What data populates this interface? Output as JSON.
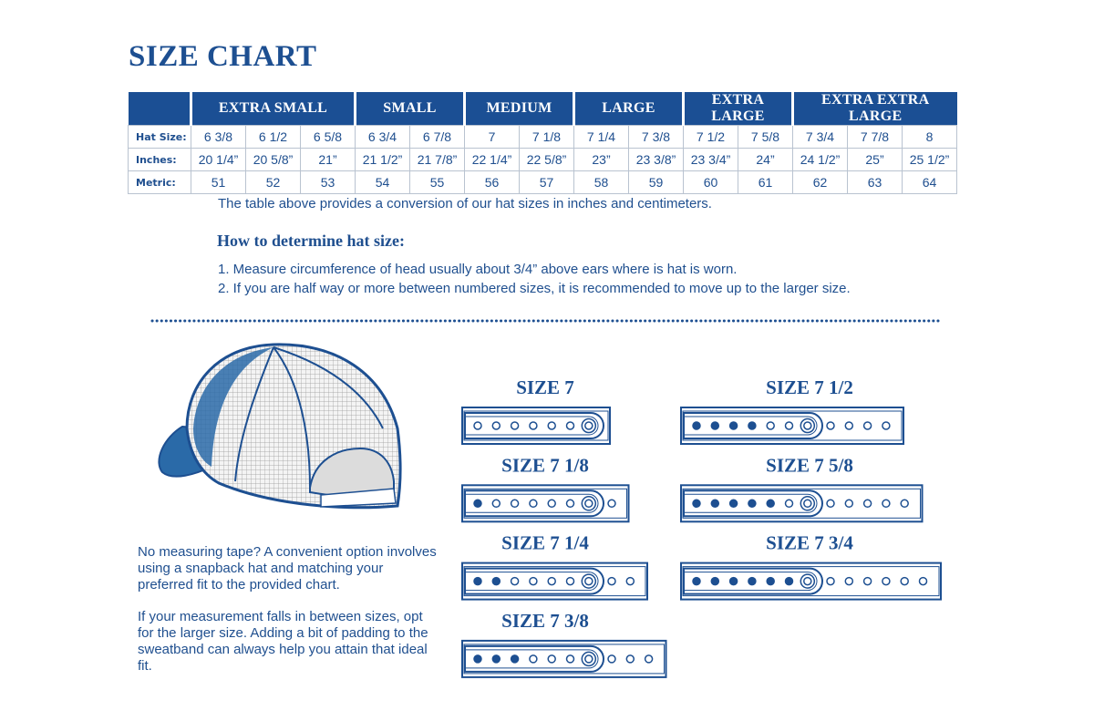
{
  "title": "SIZE CHART",
  "table": {
    "row_labels": {
      "size": "Hat Size:",
      "inches": "Inches:",
      "metric": "Metric:"
    },
    "groups": [
      {
        "label": "EXTRA SMALL",
        "columns": [
          {
            "size": "6 3/8",
            "inches": "20 1/4”",
            "metric": 51
          },
          {
            "size": "6 1/2",
            "inches": "20 5/8”",
            "metric": 52
          },
          {
            "size": "6 5/8",
            "inches": "21”",
            "metric": 53
          }
        ]
      },
      {
        "label": "SMALL",
        "columns": [
          {
            "size": "6 3/4",
            "inches": "21 1/2”",
            "metric": 54
          },
          {
            "size": "6 7/8",
            "inches": "21 7/8”",
            "metric": 55
          }
        ]
      },
      {
        "label": "MEDIUM",
        "columns": [
          {
            "size": "7",
            "inches": "22 1/4”",
            "metric": 56
          },
          {
            "size": "7 1/8",
            "inches": "22 5/8”",
            "metric": 57
          }
        ]
      },
      {
        "label": "LARGE",
        "columns": [
          {
            "size": "7 1/4",
            "inches": "23”",
            "metric": 58
          },
          {
            "size": "7 3/8",
            "inches": "23 3/8”",
            "metric": 59
          }
        ]
      },
      {
        "label": "EXTRA LARGE",
        "columns": [
          {
            "size": "7 1/2",
            "inches": "23 3/4”",
            "metric": 60
          },
          {
            "size": "7 5/8",
            "inches": "24”",
            "metric": 61
          }
        ]
      },
      {
        "label": "EXTRA EXTRA LARGE",
        "columns": [
          {
            "size": "7 3/4",
            "inches": "24 1/2”",
            "metric": 62
          },
          {
            "size": "7 7/8",
            "inches": "25”",
            "metric": 63
          },
          {
            "size": "8",
            "inches": "25 1/2”",
            "metric": 64
          }
        ]
      }
    ]
  },
  "note": "The table above provides a conversion of our hat sizes in inches and centimeters.",
  "howto": {
    "heading": "How to determine hat size:",
    "steps": [
      "1. Measure circumference of head usually about 3/4” above ears where is hat is worn.",
      "2. If you are half way or more between numbered sizes, it is recommended to move up to the larger size."
    ]
  },
  "tip": [
    [
      "No measuring tape? A convenient option involves",
      "using a snapback hat and matching your",
      "preferred fit to the provided chart."
    ],
    [
      "If your measurement falls in between sizes, opt",
      "for the larger size. Adding a bit of padding to the",
      "sweatband can always help you attain that ideal",
      "fit."
    ]
  ],
  "straps": [
    "SIZE 7",
    "SIZE 7 1/8",
    "SIZE 7 1/4",
    "SIZE 7 3/8",
    "SIZE 7 1/2",
    "SIZE 7 5/8",
    "SIZE 7 3/4"
  ]
}
